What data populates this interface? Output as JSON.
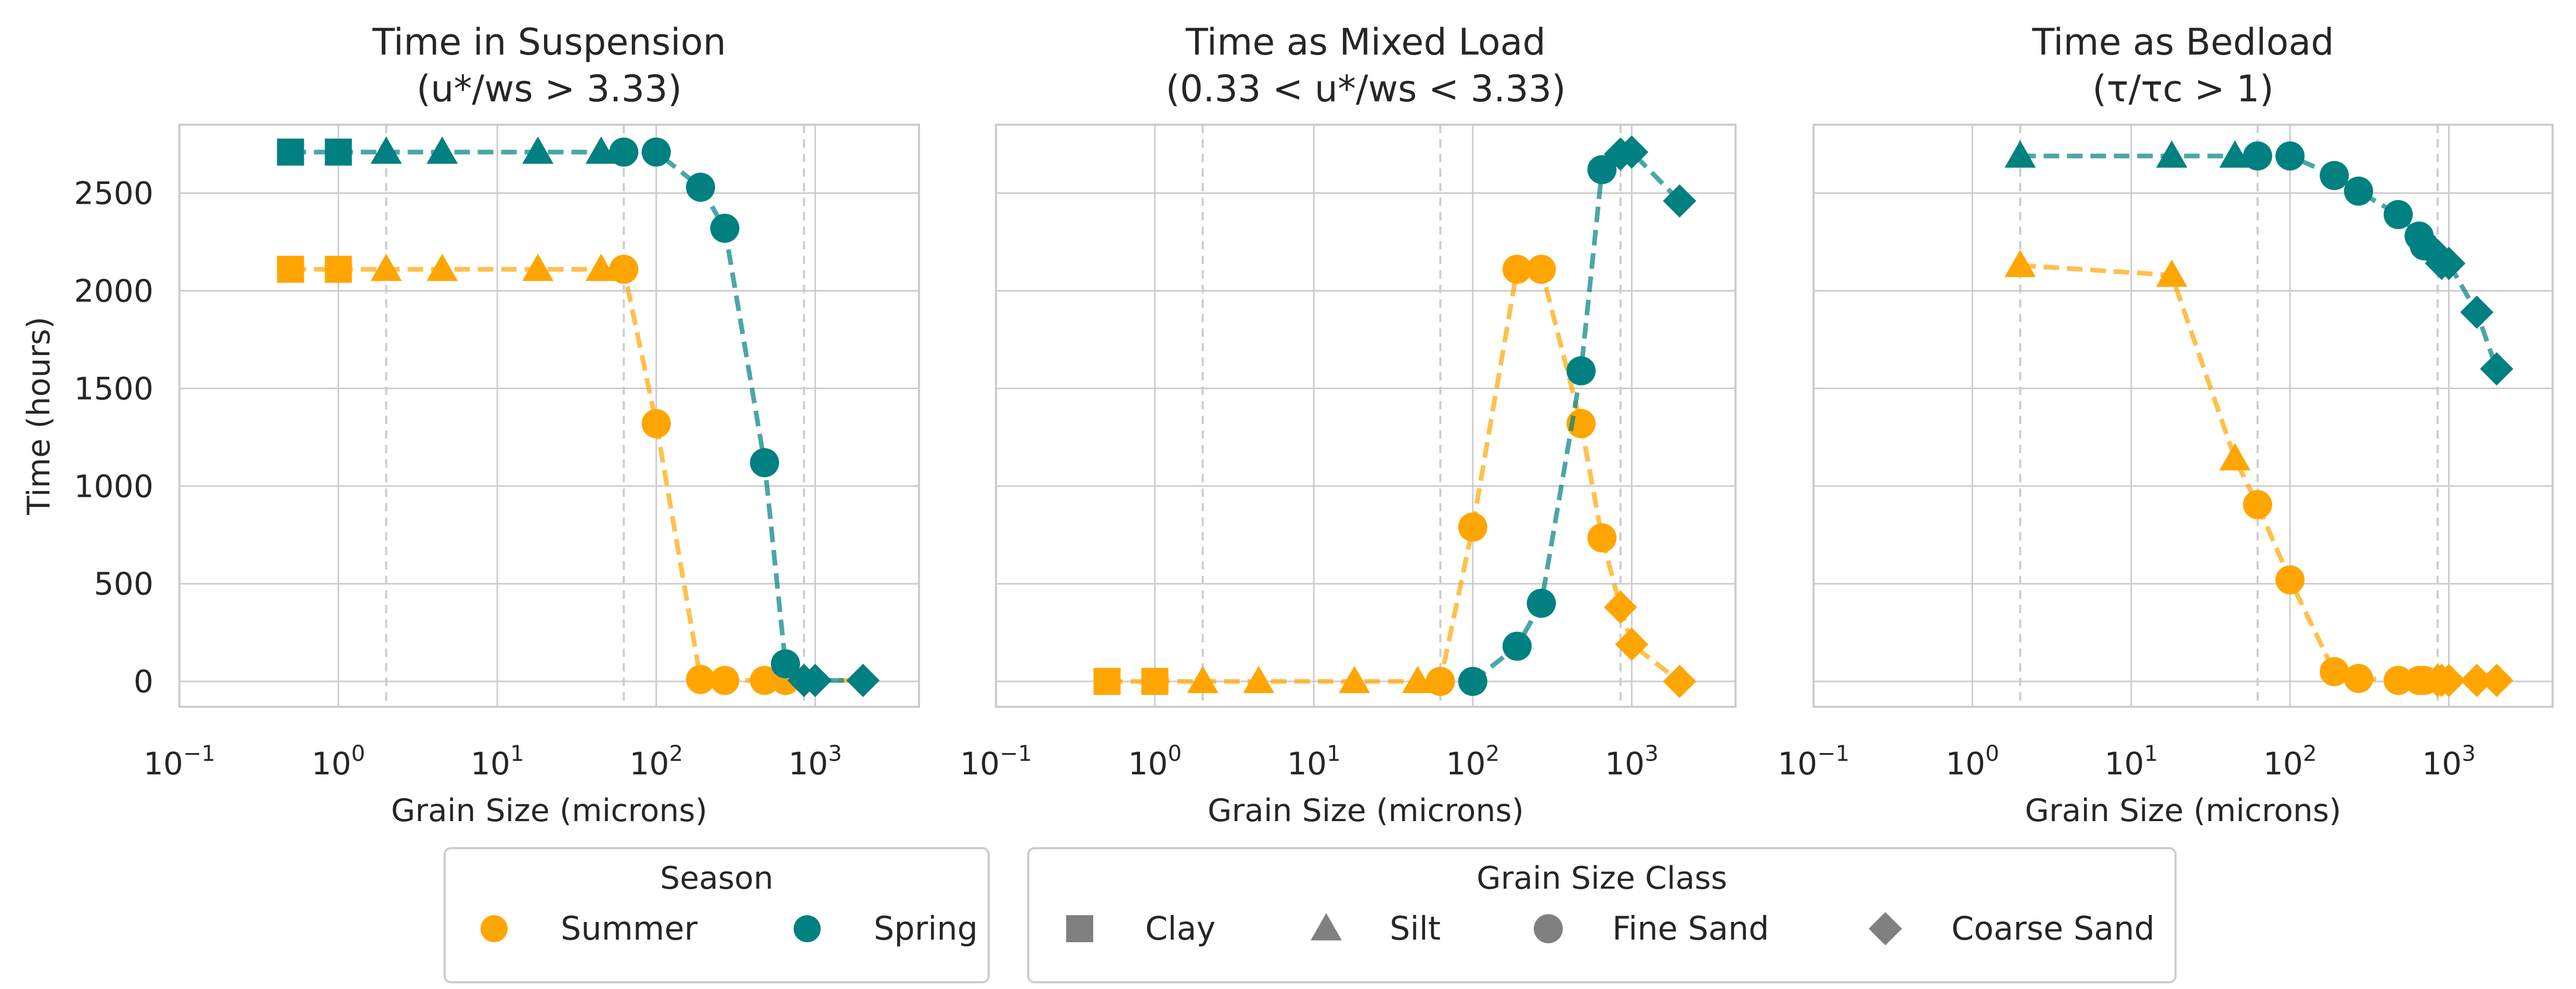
{
  "chart_data": {
    "type": "line",
    "y_axis_label": "Time (hours)",
    "y_ticks": [
      0,
      500,
      1000,
      1500,
      2000,
      2500
    ],
    "x_ticks": [
      0.1,
      1,
      10,
      100,
      1000
    ],
    "x_scale": "log",
    "y_range": [
      -130,
      2850
    ],
    "x_range": [
      0.1,
      4500
    ],
    "grid": true,
    "class_boundaries": [
      2,
      62.5,
      850
    ],
    "grain_sizes": [
      0.5,
      1,
      2,
      4.5,
      18,
      45,
      62.5,
      100,
      190,
      270,
      480,
      650,
      850,
      1000,
      2000
    ],
    "grain_classes": [
      "Clay",
      "Clay",
      "Silt",
      "Silt",
      "Silt",
      "Silt",
      "Fine Sand",
      "Fine Sand",
      "Fine Sand",
      "Fine Sand",
      "Fine Sand",
      "Fine Sand",
      "Coarse Sand",
      "Coarse Sand",
      "Coarse Sand"
    ],
    "bedload_grain_sizes": [
      2,
      18,
      45,
      62.5,
      100,
      190,
      270,
      480,
      650,
      700,
      850,
      900,
      1000,
      1500,
      2000
    ],
    "bedload_grain_classes": [
      "Silt",
      "Silt",
      "Silt",
      "Fine Sand",
      "Fine Sand",
      "Fine Sand",
      "Fine Sand",
      "Fine Sand",
      "Fine Sand",
      "Fine Sand",
      "Coarse Sand",
      "Coarse Sand",
      "Coarse Sand",
      "Coarse Sand",
      "Coarse Sand"
    ],
    "panels": [
      {
        "title_line1": "Time in Suspension",
        "title_line2": "(u*/ws > 3.33)",
        "x_axis_label": "Grain Size (microns)",
        "series": [
          {
            "name": "Summer",
            "color": "#FFA500",
            "values": [
              2110,
              2110,
              2110,
              2110,
              2110,
              2110,
              2110,
              1320,
              10,
              5,
              5,
              5,
              5,
              5,
              5
            ]
          },
          {
            "name": "Spring",
            "color": "#008080",
            "values": [
              2710,
              2710,
              2710,
              2710,
              2710,
              2710,
              2710,
              2710,
              2530,
              2320,
              1120,
              90,
              5,
              5,
              5
            ]
          }
        ]
      },
      {
        "title_line1": "Time as Mixed Load",
        "title_line2": "(0.33 < u*/ws < 3.33)",
        "x_axis_label": "Grain Size (microns)",
        "series": [
          {
            "name": "Summer",
            "color": "#FFA500",
            "values": [
              0,
              0,
              0,
              0,
              0,
              0,
              0,
              790,
              2110,
              2110,
              1320,
              735,
              380,
              190,
              0
            ]
          },
          {
            "name": "Spring",
            "color": "#008080",
            "values": [
              null,
              null,
              null,
              null,
              null,
              null,
              null,
              0,
              180,
              400,
              1590,
              2620,
              2700,
              2710,
              2460
            ]
          }
        ]
      },
      {
        "title_line1": "Time as Bedload",
        "title_line2": "(τ/τc > 1)",
        "x_axis_label": "Grain Size (microns)",
        "series": [
          {
            "name": "Summer",
            "color": "#FFA500",
            "values": [
              2130,
              2080,
              1140,
              905,
              520,
              50,
              15,
              5,
              5,
              5,
              5,
              5,
              5,
              5,
              5
            ]
          },
          {
            "name": "Spring",
            "color": "#008080",
            "values": [
              2690,
              2690,
              2690,
              2690,
              2690,
              2590,
              2510,
              2390,
              2280,
              2230,
              2180,
              2140,
              2140,
              1890,
              1600
            ]
          }
        ]
      }
    ],
    "legends": {
      "season": {
        "title": "Season",
        "items": [
          {
            "label": "Summer",
            "color": "#FFA500"
          },
          {
            "label": "Spring",
            "color": "#008080"
          }
        ]
      },
      "grain_class": {
        "title": "Grain Size Class",
        "items": [
          {
            "label": "Clay",
            "marker": "square"
          },
          {
            "label": "Silt",
            "marker": "triangle"
          },
          {
            "label": "Fine Sand",
            "marker": "circle"
          },
          {
            "label": "Coarse Sand",
            "marker": "diamond"
          }
        ]
      }
    }
  }
}
